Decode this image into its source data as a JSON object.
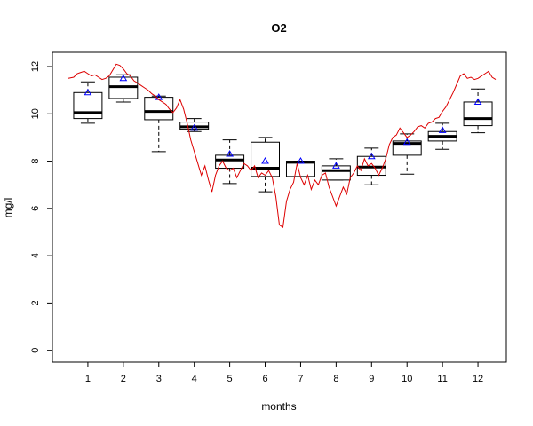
{
  "chart_data": {
    "type": "box",
    "title": "O2",
    "xlabel": "months",
    "ylabel": "mg/l",
    "categories": [
      "1",
      "2",
      "3",
      "4",
      "5",
      "6",
      "7",
      "8",
      "9",
      "10",
      "11",
      "12"
    ],
    "xlim": [
      0,
      12.8
    ],
    "ylim": [
      -0.5,
      12.6
    ],
    "yticks": [
      0,
      2,
      4,
      6,
      8,
      10,
      12
    ],
    "grid": false,
    "boxes": [
      {
        "month": 1,
        "whisker_low": 9.6,
        "q1": 9.8,
        "median": 10.05,
        "q3": 10.9,
        "whisker_high": 11.35,
        "mean": 10.9
      },
      {
        "month": 2,
        "whisker_low": 10.5,
        "q1": 10.65,
        "median": 11.15,
        "q3": 11.55,
        "whisker_high": 11.65,
        "mean": 11.5
      },
      {
        "month": 3,
        "whisker_low": 8.4,
        "q1": 9.75,
        "median": 10.1,
        "q3": 10.7,
        "whisker_high": 10.75,
        "mean": 10.7
      },
      {
        "month": 4,
        "whisker_low": 9.25,
        "q1": 9.35,
        "median": 9.45,
        "q3": 9.65,
        "whisker_high": 9.8,
        "mean": 9.4
      },
      {
        "month": 5,
        "whisker_low": 7.05,
        "q1": 7.7,
        "median": 8.05,
        "q3": 8.25,
        "whisker_high": 8.9,
        "mean": 8.3
      },
      {
        "month": 6,
        "whisker_low": 6.7,
        "q1": 7.35,
        "median": 7.7,
        "q3": 8.8,
        "whisker_high": 9.0,
        "mean": 8.0
      },
      {
        "month": 7,
        "whisker_low": 7.35,
        "q1": 7.35,
        "median": 7.95,
        "q3": 8.0,
        "whisker_high": 8.0,
        "mean": 8.0
      },
      {
        "month": 8,
        "whisker_low": 7.2,
        "q1": 7.2,
        "median": 7.6,
        "q3": 7.8,
        "whisker_high": 8.1,
        "mean": 7.8
      },
      {
        "month": 9,
        "whisker_low": 7.0,
        "q1": 7.4,
        "median": 7.75,
        "q3": 8.2,
        "whisker_high": 8.55,
        "mean": 8.2
      },
      {
        "month": 10,
        "whisker_low": 7.45,
        "q1": 8.25,
        "median": 8.75,
        "q3": 8.85,
        "whisker_high": 9.15,
        "mean": 8.8
      },
      {
        "month": 11,
        "whisker_low": 8.5,
        "q1": 8.85,
        "median": 9.05,
        "q3": 9.25,
        "whisker_high": 9.6,
        "mean": 9.3
      },
      {
        "month": 12,
        "whisker_low": 9.2,
        "q1": 9.5,
        "median": 9.8,
        "q3": 10.5,
        "whisker_high": 11.05,
        "mean": 10.5
      }
    ],
    "line_series": {
      "color": "#dd0000",
      "x": [
        0.45,
        0.6,
        0.7,
        0.8,
        0.9,
        1.0,
        1.1,
        1.2,
        1.3,
        1.4,
        1.5,
        1.6,
        1.7,
        1.8,
        1.9,
        2.0,
        2.1,
        2.2,
        2.3,
        2.4,
        2.5,
        2.6,
        2.7,
        2.8,
        2.9,
        3.0,
        3.1,
        3.2,
        3.3,
        3.4,
        3.5,
        3.6,
        3.7,
        3.8,
        3.9,
        4.0,
        4.1,
        4.2,
        4.3,
        4.4,
        4.5,
        4.6,
        4.7,
        4.8,
        4.9,
        5.0,
        5.1,
        5.2,
        5.3,
        5.4,
        5.5,
        5.6,
        5.7,
        5.8,
        5.9,
        6.0,
        6.1,
        6.2,
        6.3,
        6.4,
        6.5,
        6.6,
        6.7,
        6.8,
        6.9,
        7.0,
        7.1,
        7.2,
        7.3,
        7.4,
        7.5,
        7.6,
        7.7,
        7.8,
        7.9,
        8.0,
        8.1,
        8.2,
        8.3,
        8.4,
        8.5,
        8.6,
        8.7,
        8.8,
        8.9,
        9.0,
        9.1,
        9.2,
        9.3,
        9.4,
        9.5,
        9.6,
        9.7,
        9.8,
        9.9,
        10.0,
        10.1,
        10.2,
        10.3,
        10.4,
        10.5,
        10.6,
        10.7,
        10.8,
        10.9,
        11.0,
        11.1,
        11.2,
        11.3,
        11.4,
        11.5,
        11.6,
        11.7,
        11.8,
        11.9,
        12.0,
        12.1,
        12.2,
        12.3,
        12.4,
        12.5
      ],
      "y": [
        11.5,
        11.55,
        11.7,
        11.75,
        11.8,
        11.7,
        11.6,
        11.65,
        11.55,
        11.45,
        11.5,
        11.6,
        11.85,
        12.1,
        12.05,
        11.9,
        11.7,
        11.6,
        11.4,
        11.3,
        11.2,
        11.1,
        11.0,
        10.85,
        10.75,
        10.6,
        10.5,
        10.4,
        10.2,
        10.05,
        10.25,
        10.6,
        10.2,
        9.6,
        8.9,
        8.4,
        7.9,
        7.4,
        7.8,
        7.2,
        6.7,
        7.4,
        7.8,
        8.0,
        7.7,
        7.6,
        7.7,
        7.3,
        7.6,
        7.9,
        7.8,
        7.6,
        7.8,
        7.3,
        7.5,
        7.4,
        7.6,
        7.3,
        6.5,
        5.3,
        5.2,
        6.3,
        6.8,
        7.1,
        7.9,
        7.3,
        7.0,
        7.4,
        6.8,
        7.2,
        7.0,
        7.4,
        7.5,
        6.9,
        6.5,
        6.1,
        6.5,
        6.9,
        6.6,
        7.3,
        7.5,
        7.8,
        7.6,
        8.1,
        7.8,
        7.9,
        7.7,
        7.4,
        7.7,
        8.1,
        8.7,
        9.0,
        9.1,
        9.4,
        9.2,
        9.0,
        9.1,
        9.25,
        9.45,
        9.5,
        9.4,
        9.6,
        9.65,
        9.8,
        9.85,
        10.1,
        10.3,
        10.6,
        10.9,
        11.25,
        11.6,
        11.7,
        11.5,
        11.55,
        11.45,
        11.5,
        11.6,
        11.7,
        11.8,
        11.55,
        11.45
      ]
    }
  }
}
